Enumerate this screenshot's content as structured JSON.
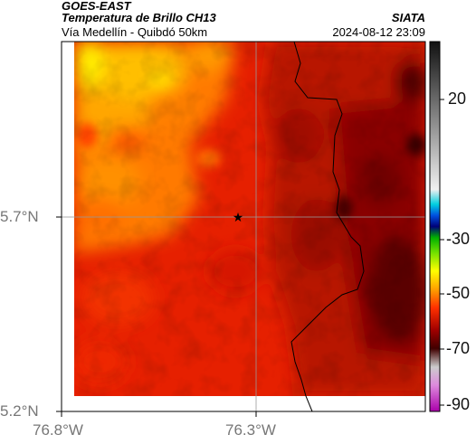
{
  "header": {
    "satellite": "GOES-EAST",
    "product": "Temperatura de Brillo CH13",
    "region": "Vía Medellín - Quibdó 50km",
    "institution": "SIATA",
    "datetime": "2024-08-12 23:09"
  },
  "map": {
    "lat_ticks": [
      "5.7°N",
      "5.2°N"
    ],
    "lon_ticks": [
      "76.8°W",
      "76.3°W"
    ],
    "marker": "star-marker"
  },
  "colorbar": {
    "tick_labels": [
      "20",
      "-30",
      "-50",
      "-70",
      "-90"
    ],
    "colors": {
      "hot": "#4a0000",
      "red": "#e82000",
      "orange": "#ff8c00",
      "yellow": "#ffe000"
    }
  }
}
